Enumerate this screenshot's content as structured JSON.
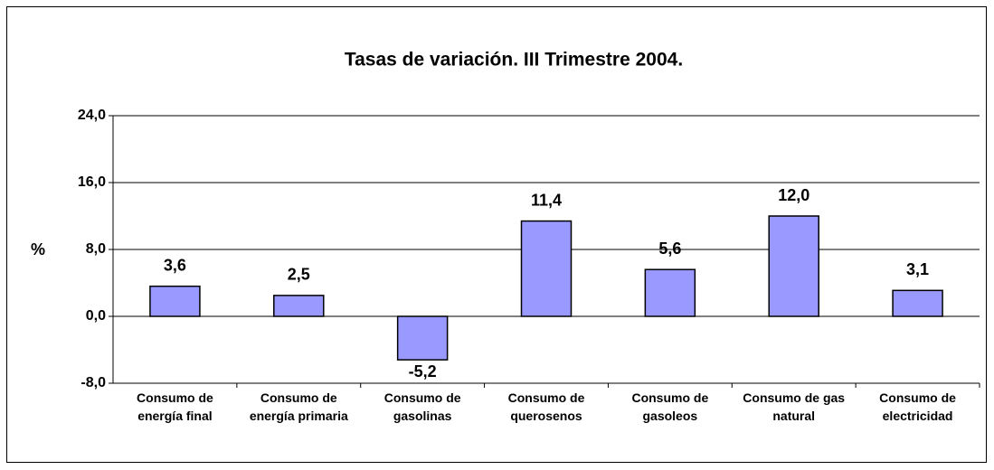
{
  "chart_data": {
    "type": "bar",
    "title": "Tasas de variación. III Trimestre 2004.",
    "y_label": "%",
    "categories": [
      "Consumo de energía final",
      "Consumo de energía primaria",
      "Consumo de gasolinas",
      "Consumo de querosenos",
      "Consumo de gasoleos",
      "Consumo de gas natural",
      "Consumo de electricidad"
    ],
    "values": [
      3.6,
      2.5,
      -5.2,
      11.4,
      5.6,
      12.0,
      3.1
    ],
    "value_labels": [
      "3,6",
      "2,5",
      "-5,2",
      "11,4",
      "5,6",
      "12,0",
      "3,1"
    ],
    "color": "#9999ff",
    "ylim": [
      -8,
      24
    ],
    "yticks": [
      {
        "value": -8,
        "label": "-8,0"
      },
      {
        "value": 0,
        "label": "0,0"
      },
      {
        "value": 8,
        "label": "8,0"
      },
      {
        "value": 16,
        "label": "16,0"
      },
      {
        "value": 24,
        "label": "24,0"
      }
    ],
    "grid": true
  }
}
